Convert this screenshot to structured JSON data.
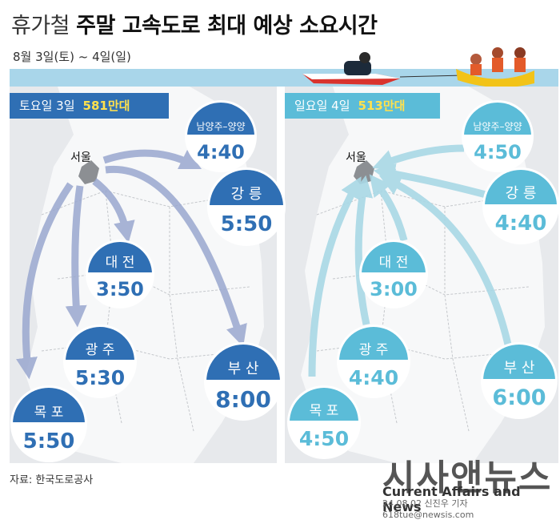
{
  "title": {
    "prefix": "휴가철",
    "bold": "주말 고속도로 최대 예상 소요시간"
  },
  "subtitle": "8월 3일(토) ~ 4일(일)",
  "saturday": {
    "label": "토요일 3일",
    "traffic": "581만대"
  },
  "sunday": {
    "label": "일요일 4일",
    "traffic": "513만대"
  },
  "seoul_label": "서울",
  "saturday_routes": [
    {
      "city": "남양주–양양",
      "time": "4:40"
    },
    {
      "city": "강 릉",
      "time": "5:50"
    },
    {
      "city": "대 전",
      "time": "3:50"
    },
    {
      "city": "광 주",
      "time": "5:30"
    },
    {
      "city": "목 포",
      "time": "5:50"
    },
    {
      "city": "부 산",
      "time": "8:00"
    }
  ],
  "sunday_routes": [
    {
      "city": "남양주–양양",
      "time": "4:50"
    },
    {
      "city": "강 릉",
      "time": "4:40"
    },
    {
      "city": "대 전",
      "time": "3:00"
    },
    {
      "city": "광 주",
      "time": "4:40"
    },
    {
      "city": "목 포",
      "time": "4:50"
    },
    {
      "city": "부 산",
      "time": "6:00"
    }
  ],
  "source": "자료: 한국도로공사",
  "logo": {
    "main": "시사앤뉴스",
    "sub": "Current Affairs and News"
  },
  "credit": "24.08.02 신진우 기자 618tue@newsis.com",
  "colors": {
    "saturday": "#2f6fb4",
    "sunday": "#5bbcd8",
    "water": "#a9d6ea",
    "land": "#f7f8f9"
  }
}
